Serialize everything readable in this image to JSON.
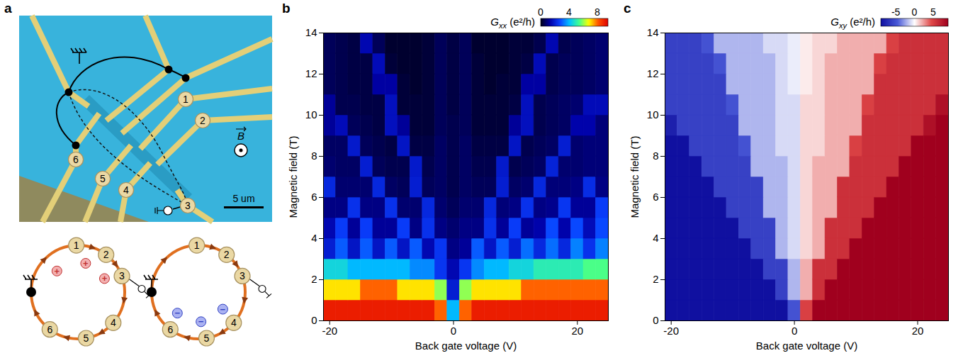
{
  "diagram": {
    "panel": "a",
    "contacts": [
      "1",
      "2",
      "3",
      "4",
      "5",
      "6"
    ],
    "field": "B",
    "scale_bar": "5 um",
    "edge_loops": [
      {
        "contacts": [
          "1",
          "2",
          "3",
          "4",
          "5",
          "6"
        ],
        "charge": "+"
      },
      {
        "contacts": [
          "1",
          "2",
          "3",
          "4",
          "5",
          "6"
        ],
        "charge": "−"
      }
    ]
  },
  "chart_data": [
    {
      "type": "heatmap",
      "panel": "b",
      "xlabel": "Back gate voltage (V)",
      "ylabel": "Magnetic field (T)",
      "xlim": [
        -21,
        25
      ],
      "ylim": [
        0,
        14
      ],
      "xticks": [
        -20,
        0,
        20
      ],
      "yticks": [
        0,
        2,
        4,
        6,
        8,
        10,
        12,
        14
      ],
      "x_edges": [
        -21,
        -19,
        -17,
        -15,
        -13,
        -11,
        -9,
        -7,
        -5,
        -3,
        -1,
        1,
        3,
        5,
        7,
        9,
        11,
        13,
        15,
        17,
        19,
        21,
        23,
        25
      ],
      "y_edges": [
        0,
        1,
        2,
        3,
        4,
        5,
        6,
        7,
        8,
        9,
        10,
        11,
        12,
        13,
        14
      ],
      "values": [
        [
          9,
          9,
          9,
          9,
          9,
          9,
          9,
          9,
          9,
          8,
          4,
          8,
          9,
          9,
          9,
          9,
          9,
          9,
          9,
          9,
          9,
          9,
          9
        ],
        [
          7,
          7,
          7,
          8,
          8,
          8,
          7,
          7,
          7,
          6,
          2,
          6,
          7,
          7,
          7,
          7,
          8,
          8,
          8,
          8,
          8,
          8,
          8
        ],
        [
          4.5,
          4.5,
          4,
          4,
          4,
          4,
          4,
          3.5,
          3.5,
          2.5,
          1.5,
          2.5,
          3.5,
          4,
          4,
          4.5,
          4.5,
          5,
          5,
          5,
          5,
          5.5,
          5.5
        ],
        [
          2,
          3,
          1.8,
          3,
          1.8,
          3,
          1.8,
          3,
          1.5,
          2.5,
          1,
          1.2,
          3,
          1.8,
          3,
          2,
          3.2,
          2.2,
          3.2,
          2.2,
          3.4,
          2.4,
          3.4
        ],
        [
          1.5,
          2.6,
          1.2,
          2.6,
          1.2,
          1.2,
          2.6,
          1,
          2.4,
          1,
          0.8,
          1,
          1,
          2.4,
          1.2,
          2.6,
          1.2,
          1.4,
          2.8,
          1.4,
          2.8,
          1.6,
          2.8
        ],
        [
          1,
          1,
          2.4,
          1,
          1,
          2.4,
          0.8,
          0.8,
          2.2,
          0.8,
          0.6,
          0.8,
          0.8,
          2.2,
          0.9,
          1,
          2.4,
          1,
          1.1,
          2.5,
          1.2,
          1.2,
          2.6
        ],
        [
          2.2,
          0.8,
          0.8,
          0.8,
          2.2,
          0.7,
          0.6,
          2,
          0.6,
          0.7,
          0.5,
          0.7,
          0.6,
          0.6,
          2,
          0.7,
          0.8,
          2.2,
          0.9,
          0.9,
          1,
          2.3,
          1
        ],
        [
          0.8,
          0.7,
          0.7,
          2,
          0.6,
          0.5,
          0.5,
          1.9,
          0.5,
          0.7,
          0.5,
          0.7,
          0.5,
          0.5,
          1.9,
          0.5,
          0.6,
          0.7,
          2.1,
          0.8,
          0.8,
          0.9,
          0.9
        ],
        [
          0.7,
          0.7,
          1.9,
          0.6,
          0.5,
          0.4,
          1.8,
          0.4,
          0.4,
          0.7,
          0.5,
          0.7,
          0.4,
          0.4,
          0.4,
          1.8,
          0.5,
          0.6,
          0.7,
          2,
          0.8,
          0.9,
          0.9
        ],
        [
          1.2,
          1.6,
          0.6,
          0.5,
          0.4,
          1.7,
          1.2,
          0.3,
          0.3,
          0.6,
          0.5,
          0.6,
          0.3,
          0.3,
          0.3,
          1.2,
          1.7,
          0.5,
          0.6,
          0.7,
          1.4,
          1.4,
          0.9
        ],
        [
          1.2,
          0.5,
          0.5,
          0.4,
          0.4,
          1.7,
          0.3,
          0.3,
          0.3,
          0.6,
          0.4,
          0.6,
          0.3,
          0.3,
          0.3,
          0.4,
          1.7,
          0.5,
          0.6,
          0.7,
          0.8,
          1.6,
          1.6
        ],
        [
          0.6,
          0.5,
          0.4,
          0.4,
          1.3,
          1.3,
          0.3,
          0.2,
          0.3,
          0.6,
          0.4,
          0.6,
          0.3,
          0.2,
          0.3,
          0.3,
          1.3,
          1.3,
          0.5,
          0.6,
          0.6,
          0.7,
          0.8
        ],
        [
          0.6,
          0.5,
          0.4,
          0.4,
          1.6,
          0.3,
          0.2,
          0.2,
          0.3,
          0.6,
          0.4,
          0.6,
          0.3,
          0.2,
          0.2,
          0.3,
          0.4,
          1.6,
          0.5,
          0.6,
          0.6,
          0.7,
          0.8
        ],
        [
          0.6,
          0.5,
          0.4,
          1.5,
          0.6,
          0.2,
          0.2,
          0.2,
          0.3,
          0.6,
          0.4,
          0.6,
          0.2,
          0.2,
          0.2,
          0.3,
          0.3,
          0.5,
          1.5,
          0.5,
          0.6,
          0.7,
          0.8
        ]
      ],
      "colorbar": {
        "label": {
          "symbol": "G",
          "subscript": "xx",
          "unit": "(e²/h)"
        },
        "range": [
          0,
          9.5
        ],
        "ticks": [
          0,
          4,
          8
        ]
      }
    },
    {
      "type": "heatmap",
      "panel": "c",
      "xlabel": "Back gate voltage (V)",
      "ylabel": "Magnetic field (T)",
      "xlim": [
        -21,
        25
      ],
      "ylim": [
        0,
        14
      ],
      "xticks": [
        -20,
        0,
        20
      ],
      "yticks": [
        0,
        2,
        4,
        6,
        8,
        10,
        12,
        14
      ],
      "x_edges": [
        -21,
        -19,
        -17,
        -15,
        -13,
        -11,
        -9,
        -7,
        -5,
        -3,
        -1,
        1,
        3,
        5,
        7,
        9,
        11,
        13,
        15,
        17,
        19,
        21,
        23,
        25
      ],
      "y_edges": [
        0,
        1,
        2,
        3,
        4,
        5,
        6,
        7,
        8,
        9,
        10,
        11,
        12,
        13,
        14
      ],
      "values": [
        [
          -9,
          -9,
          -9,
          -9,
          -9,
          -9,
          -9,
          -9,
          -9,
          -9,
          -5,
          5,
          9,
          9,
          9,
          9,
          9,
          9,
          9,
          9,
          9,
          9,
          9
        ],
        [
          -9,
          -9,
          -9,
          -9,
          -9,
          -9,
          -9,
          -9,
          -9,
          -6,
          -2,
          2,
          6,
          9,
          9,
          9,
          9,
          9,
          9,
          9,
          9,
          9,
          9
        ],
        [
          -9,
          -9,
          -9,
          -9,
          -9,
          -9,
          -9,
          -9,
          -6,
          -6,
          -2,
          2,
          6,
          6,
          9,
          9,
          9,
          9,
          9,
          9,
          9,
          9,
          9
        ],
        [
          -9,
          -9,
          -9,
          -9,
          -9,
          -9,
          -9,
          -6,
          -6,
          -2,
          -1,
          1,
          2,
          6,
          6,
          9,
          9,
          9,
          9,
          9,
          9,
          9,
          9
        ],
        [
          -9,
          -9,
          -9,
          -9,
          -9,
          -9,
          -6,
          -6,
          -6,
          -2,
          -1,
          1,
          2,
          6,
          6,
          6,
          9,
          9,
          9,
          9,
          9,
          9,
          9
        ],
        [
          -9,
          -9,
          -9,
          -9,
          -9,
          -6,
          -6,
          -6,
          -2,
          -2,
          -1,
          1,
          2,
          2,
          6,
          6,
          6,
          9,
          9,
          9,
          9,
          9,
          9
        ],
        [
          -9,
          -9,
          -9,
          -9,
          -6,
          -6,
          -6,
          -6,
          -2,
          -2,
          -1,
          1,
          2,
          2,
          6,
          6,
          6,
          6,
          9,
          9,
          9,
          9,
          9
        ],
        [
          -9,
          -9,
          -9,
          -6,
          -6,
          -6,
          -6,
          -2,
          -2,
          -2,
          -1,
          1,
          2,
          2,
          2,
          6,
          6,
          6,
          6,
          9,
          9,
          9,
          9
        ],
        [
          -9,
          -9,
          -6,
          -6,
          -6,
          -6,
          -5,
          -2,
          -2,
          -1,
          -1,
          1,
          1,
          2,
          2,
          5,
          6,
          6,
          6,
          6,
          9,
          9,
          9
        ],
        [
          -8,
          -6,
          -6,
          -6,
          -6,
          -6,
          -2,
          -2,
          -2,
          -1,
          -1,
          1,
          1,
          2,
          2,
          2,
          6,
          6,
          6,
          6,
          6,
          8,
          9
        ],
        [
          -6,
          -6,
          -6,
          -6,
          -6,
          -5,
          -2,
          -2,
          -2,
          -1,
          -1,
          1,
          1,
          2,
          2,
          2,
          5,
          6,
          6,
          6,
          6,
          6,
          8
        ],
        [
          -6,
          -6,
          -6,
          -6,
          -6,
          -2,
          -2,
          -2,
          -2,
          -1,
          -0.5,
          0.5,
          1,
          2,
          2,
          2,
          2,
          6,
          6,
          6,
          6,
          6,
          6
        ],
        [
          -6,
          -6,
          -6,
          -6,
          -5,
          -2,
          -2,
          -2,
          -2,
          -1,
          -0.5,
          0.5,
          1,
          2,
          2,
          2,
          2,
          5,
          6,
          6,
          6,
          6,
          6
        ],
        [
          -6,
          -6,
          -6,
          -5,
          -2,
          -2,
          -2,
          -2,
          -1,
          -1,
          -0.5,
          0.5,
          1,
          1,
          2,
          2,
          2,
          2,
          5,
          6,
          6,
          6,
          6
        ]
      ],
      "colorbar": {
        "label": {
          "symbol": "G",
          "subscript": "xy",
          "unit": "(e²/h)"
        },
        "range": [
          -9,
          9
        ],
        "ticks": [
          -5,
          0,
          5
        ]
      }
    }
  ]
}
